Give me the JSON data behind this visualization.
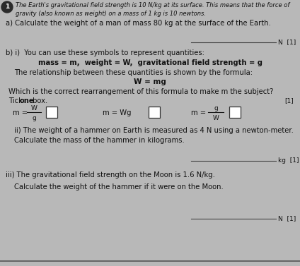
{
  "bg_color": "#b8b8b8",
  "text_color": "#111111",
  "line_color": "#444444",
  "header_line1": "The Earth's gravitational field strength is 10 N/kg at its surface. This means that the force of",
  "header_line2": "gravity (also known as weight) on a mass of 1 kg is 10 newtons.",
  "part_a": "a) Calculate the weight of a man of mass 80 kg at the surface of the Earth.",
  "marks_a": "N  [1]",
  "part_b_intro": "b) i)  You can use these symbols to represent quantities:",
  "symbols_line": "mass = m,  weight = W,  gravitational field strength = g",
  "relationship_text": "The relationship between these quantities is shown by the formula:",
  "formula": "W = mg",
  "rearrange_text": "Which is the correct rearrangement of this formula to make m the subject?",
  "tick_normal": "Tick ",
  "tick_bold": "one",
  "tick_end": " box.",
  "marks_bi": "[1]",
  "part_b_ii_text": "ii) The weight of a hammer on Earth is measured as 4 N using a newton-meter.",
  "part_b_ii_calc": "Calculate the mass of the hammer in kilograms.",
  "answer_line1_suffix": "kg  [1]",
  "part_b_iii_text": "iii) The gravitational field strength on the Moon is 1.6 N/kg.",
  "part_b_iii_calc": "Calculate the weight of the hammer if it were on the Moon.",
  "answer_line2_suffix": "N  [1]",
  "bottom_line_color": "#555555"
}
